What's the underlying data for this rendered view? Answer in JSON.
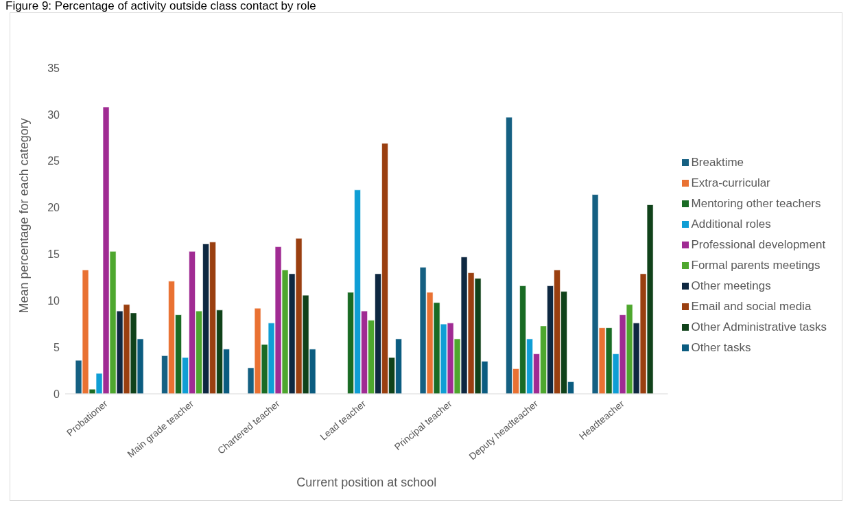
{
  "chart_data": {
    "type": "bar",
    "title": "Figure 9: Percentage of activity outside class contact by role",
    "xlabel": "Current position at school",
    "ylabel": "Mean percentage for each category",
    "categories": [
      "Probationer",
      "Main grade teacher",
      "Chartered teacher",
      "Lead teacher",
      "Principal teacher",
      "Deputy headteacher",
      "Headteacher"
    ],
    "series": [
      {
        "name": "Breaktime",
        "color": "#156082",
        "values": [
          3.6,
          4.1,
          2.8,
          null,
          13.6,
          29.7,
          21.4
        ]
      },
      {
        "name": "Extra-curricular",
        "color": "#e97132",
        "values": [
          13.3,
          12.1,
          9.2,
          null,
          10.9,
          2.7,
          7.1
        ]
      },
      {
        "name": "Mentoring other teachers",
        "color": "#196b24",
        "values": [
          0.5,
          8.5,
          5.3,
          10.9,
          9.8,
          11.6,
          7.1
        ]
      },
      {
        "name": "Additional roles",
        "color": "#0f9ed5",
        "values": [
          2.2,
          3.9,
          7.6,
          21.9,
          7.5,
          5.9,
          4.3
        ]
      },
      {
        "name": "Professional development",
        "color": "#a02b93",
        "values": [
          30.8,
          15.3,
          15.8,
          8.9,
          7.6,
          4.3,
          8.5
        ]
      },
      {
        "name": "Formal parents meetings",
        "color": "#4ea72e",
        "values": [
          15.3,
          8.9,
          13.3,
          7.9,
          5.9,
          7.3,
          9.6
        ]
      },
      {
        "name": "Other meetings",
        "color": "#0e2841",
        "values": [
          8.9,
          16.1,
          12.9,
          12.9,
          14.7,
          11.6,
          7.6
        ]
      },
      {
        "name": "Email and social media",
        "color": "#9a3f10",
        "values": [
          9.6,
          16.3,
          16.7,
          26.9,
          13.0,
          13.3,
          12.9
        ]
      },
      {
        "name": "Other Administrative tasks",
        "color": "#10421a",
        "values": [
          8.7,
          9.0,
          10.6,
          3.9,
          12.4,
          11.0,
          20.3
        ]
      },
      {
        "name": "Other tasks",
        "color": "#0b5c80",
        "values": [
          5.9,
          4.8,
          4.8,
          5.9,
          3.5,
          1.3,
          null
        ]
      }
    ],
    "ylim": [
      0,
      35
    ],
    "yticks": [
      0,
      5,
      10,
      15,
      20,
      25,
      30,
      35
    ],
    "grid": false,
    "legend": "right"
  }
}
